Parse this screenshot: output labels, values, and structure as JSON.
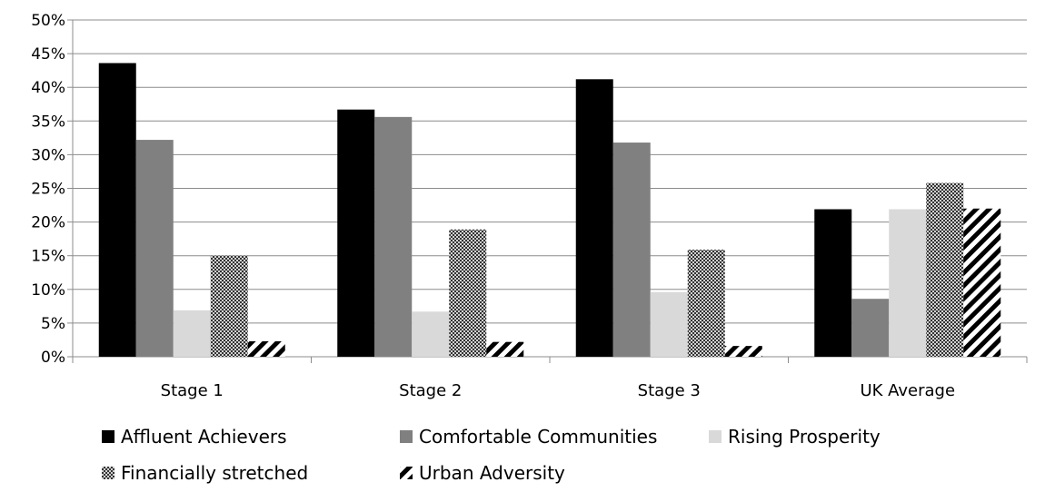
{
  "chart_data": {
    "type": "bar",
    "title": "",
    "xlabel": "",
    "ylabel": "",
    "ylim": [
      0,
      50
    ],
    "y_ticks": [
      "0%",
      "5%",
      "10%",
      "15%",
      "20%",
      "25%",
      "30%",
      "35%",
      "40%",
      "45%",
      "50%"
    ],
    "grid": true,
    "legend_position": "bottom",
    "categories": [
      "Stage 1",
      "Stage 2",
      "Stage 3",
      "UK Average"
    ],
    "series": [
      {
        "name": "Affluent Achievers",
        "values": [
          43.6,
          36.7,
          41.2,
          21.9
        ],
        "color": "#000000",
        "pattern": "solid"
      },
      {
        "name": "Comfortable Communities",
        "values": [
          32.2,
          35.6,
          31.8,
          8.6
        ],
        "color": "#808080",
        "pattern": "solid"
      },
      {
        "name": "Rising Prosperity",
        "values": [
          6.9,
          6.7,
          9.6,
          21.9
        ],
        "color": "#d9d9d9",
        "pattern": "solid"
      },
      {
        "name": "Financially stretched",
        "values": [
          15.0,
          18.9,
          15.9,
          25.8
        ],
        "color": "#333333",
        "pattern": "dots"
      },
      {
        "name": "Urban Adversity",
        "values": [
          2.3,
          2.2,
          1.6,
          22.0
        ],
        "color": "#000000",
        "pattern": "diagonal-stripes"
      }
    ]
  }
}
